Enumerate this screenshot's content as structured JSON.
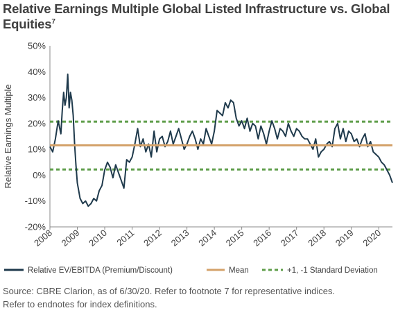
{
  "title": "Relative Earnings Multiple Global Listed Infrastructure vs. Global Equities",
  "title_footnote": "7",
  "source": [
    "Source: CBRE Clarion, as of 6/30/20. Refer to footnote 7 for representative indices.",
    "Refer to endnotes for index definitions."
  ],
  "chart_data": {
    "type": "line",
    "title": "Relative Earnings Multiple Global Listed Infrastructure vs. Global Equities",
    "ylabel": "Relative Earnings Multiple",
    "xlabel": "",
    "ylim": [
      -20,
      50
    ],
    "xlim": [
      2008,
      2020.5
    ],
    "y_ticks": [
      -20,
      -10,
      0,
      10,
      20,
      30,
      40,
      50
    ],
    "y_tick_labels": [
      "-20%",
      "-10%",
      "0%",
      "10%",
      "20%",
      "30%",
      "40%",
      "50%"
    ],
    "x_ticks": [
      2008,
      2009,
      2010,
      2011,
      2012,
      2013,
      2014,
      2015,
      2016,
      2017,
      2018,
      2019,
      2020
    ],
    "x_tick_labels": [
      "2008",
      "2009",
      "2010",
      "2011",
      "2012",
      "2013",
      "2014",
      "2015",
      "2016",
      "2017",
      "2018",
      "2019",
      "2020"
    ],
    "grid": false,
    "legend_position": "bottom",
    "series": [
      {
        "name": "Relative EV/EBITDA (Premium/Discount)",
        "kind": "line",
        "color": "#1f3a4c",
        "x": [
          2008.0,
          2008.1,
          2008.2,
          2008.3,
          2008.4,
          2008.45,
          2008.5,
          2008.55,
          2008.6,
          2008.65,
          2008.7,
          2008.75,
          2008.8,
          2008.85,
          2008.9,
          2008.95,
          2009.0,
          2009.1,
          2009.2,
          2009.3,
          2009.4,
          2009.5,
          2009.6,
          2009.7,
          2009.8,
          2009.9,
          2010.0,
          2010.1,
          2010.2,
          2010.3,
          2010.4,
          2010.5,
          2010.6,
          2010.7,
          2010.8,
          2010.9,
          2011.0,
          2011.1,
          2011.2,
          2011.3,
          2011.4,
          2011.5,
          2011.6,
          2011.7,
          2011.8,
          2011.9,
          2012.0,
          2012.1,
          2012.2,
          2012.3,
          2012.4,
          2012.5,
          2012.6,
          2012.7,
          2012.8,
          2012.9,
          2013.0,
          2013.1,
          2013.2,
          2013.3,
          2013.4,
          2013.5,
          2013.6,
          2013.7,
          2013.8,
          2013.9,
          2014.0,
          2014.1,
          2014.2,
          2014.3,
          2014.4,
          2014.5,
          2014.6,
          2014.7,
          2014.8,
          2014.9,
          2015.0,
          2015.1,
          2015.2,
          2015.3,
          2015.4,
          2015.5,
          2015.6,
          2015.7,
          2015.8,
          2015.9,
          2016.0,
          2016.1,
          2016.2,
          2016.3,
          2016.4,
          2016.5,
          2016.6,
          2016.7,
          2016.8,
          2016.9,
          2017.0,
          2017.1,
          2017.2,
          2017.3,
          2017.4,
          2017.5,
          2017.6,
          2017.7,
          2017.8,
          2017.9,
          2018.0,
          2018.1,
          2018.2,
          2018.3,
          2018.4,
          2018.5,
          2018.6,
          2018.7,
          2018.8,
          2018.9,
          2019.0,
          2019.1,
          2019.2,
          2019.3,
          2019.4,
          2019.5,
          2019.6,
          2019.7,
          2019.8,
          2019.9,
          2020.0,
          2020.1,
          2020.2,
          2020.3,
          2020.4,
          2020.5
        ],
        "y": [
          11,
          9,
          14,
          21,
          16,
          25,
          32,
          27,
          30,
          39,
          26,
          32,
          29,
          23,
          12,
          4,
          -3,
          -9,
          -11,
          -10,
          -12,
          -11,
          -9,
          -10,
          -6,
          -4,
          2,
          5,
          3,
          -1,
          4,
          1,
          -2,
          -5,
          6,
          5,
          7,
          12,
          18,
          11,
          14,
          9,
          12,
          7,
          17,
          9,
          14,
          15,
          11,
          13,
          17,
          12,
          15,
          18,
          14,
          10,
          12,
          15,
          17,
          14,
          10,
          14,
          12,
          18,
          15,
          12,
          17,
          25,
          24,
          23,
          28,
          26,
          29,
          28,
          22,
          19,
          21,
          18,
          22,
          17,
          20,
          19,
          14,
          19,
          16,
          12,
          17,
          21,
          18,
          14,
          18,
          17,
          15,
          20,
          17,
          15,
          18,
          17,
          15,
          14,
          14,
          12,
          10,
          14,
          7,
          9,
          10,
          12,
          13,
          11,
          18,
          20,
          14,
          18,
          13,
          17,
          16,
          13,
          14,
          11,
          14,
          16,
          11,
          13,
          9,
          8,
          7,
          5,
          4,
          2,
          0,
          -3
        ]
      },
      {
        "name": "Mean",
        "kind": "hline",
        "color": "#d4a26a",
        "value": 11.5
      },
      {
        "name": "+1, -1 Standard Deviation",
        "kind": "hline-pair",
        "color": "#5f9e4a",
        "values": [
          20.7,
          2.2
        ]
      }
    ]
  },
  "colors": {
    "ev_line": "#1f3a4c",
    "mean_line": "#d4a26a",
    "std_line": "#5f9e4a",
    "axis": "#888888",
    "text": "#404040"
  }
}
